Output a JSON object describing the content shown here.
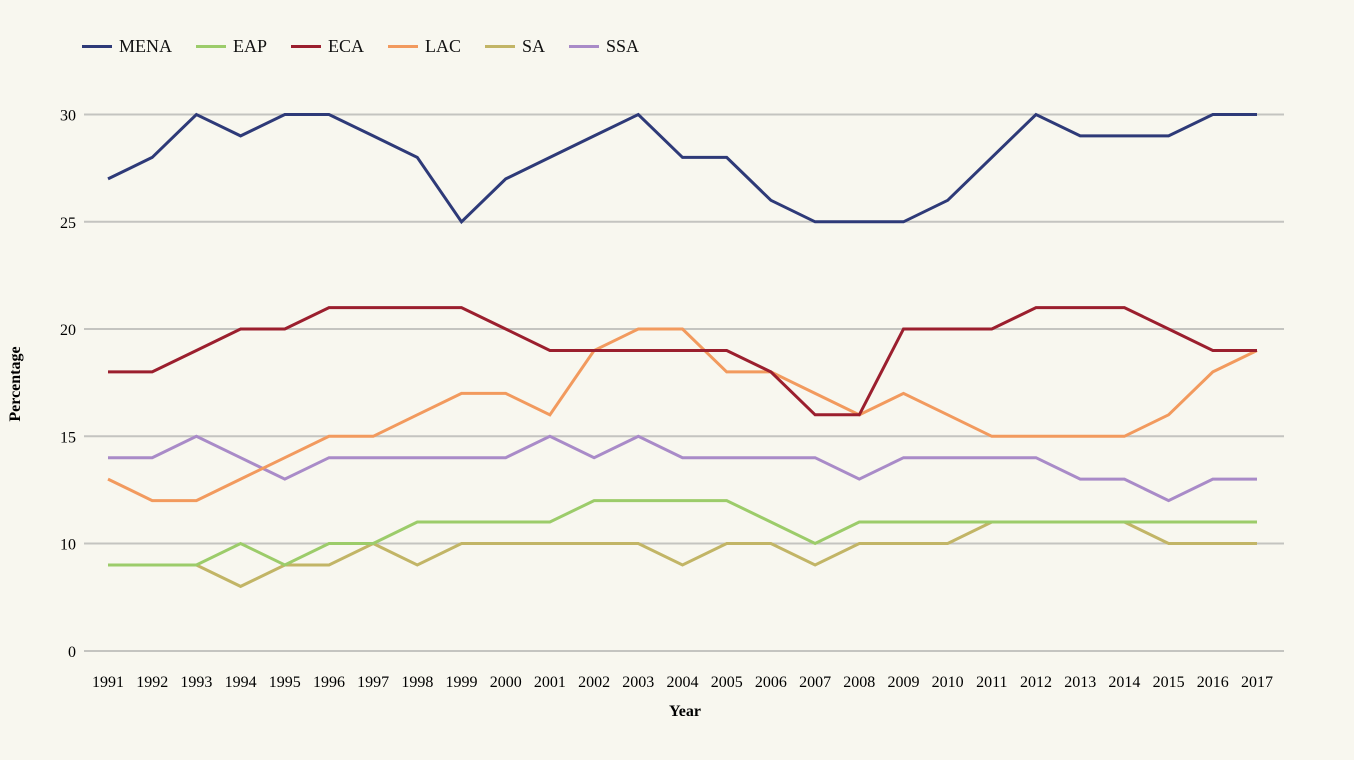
{
  "chart_data": {
    "type": "line",
    "title": "",
    "xlabel": "Year",
    "ylabel": "Percentage",
    "x": [
      "1991",
      "1992",
      "1993",
      "1994",
      "1995",
      "1996",
      "1997",
      "1998",
      "1999",
      "2000",
      "2001",
      "2002",
      "2003",
      "2004",
      "2005",
      "2006",
      "2007",
      "2008",
      "2009",
      "2010",
      "2011",
      "2012",
      "2013",
      "2014",
      "2015",
      "2016",
      "2017"
    ],
    "yticks": [
      0,
      10,
      15,
      20,
      25,
      30
    ],
    "ylim": [
      0,
      30
    ],
    "grid": true,
    "legend_position": "top-left",
    "series": [
      {
        "name": "MENA",
        "color": "#2e3a78",
        "values": [
          27,
          28,
          30,
          29,
          30,
          30,
          29,
          28,
          25,
          27,
          28,
          29,
          30,
          28,
          28,
          26,
          25,
          25,
          25,
          26,
          28,
          30,
          29,
          29,
          29,
          30,
          30
        ]
      },
      {
        "name": "EAP",
        "color": "#9ccc6a",
        "values": [
          9,
          9,
          9,
          10,
          9,
          10,
          10,
          11,
          11,
          11,
          11,
          12,
          12,
          12,
          12,
          11,
          10,
          11,
          11,
          11,
          11,
          11,
          11,
          11,
          11,
          11,
          11
        ]
      },
      {
        "name": "ECA",
        "color": "#9b1f2e",
        "values": [
          18,
          18,
          19,
          20,
          20,
          21,
          21,
          21,
          21,
          20,
          19,
          19,
          19,
          19,
          19,
          18,
          16,
          16,
          20,
          20,
          20,
          21,
          21,
          21,
          20,
          19,
          19
        ]
      },
      {
        "name": "LAC",
        "color": "#f29a5e",
        "values": [
          13,
          12,
          12,
          13,
          14,
          15,
          15,
          16,
          17,
          17,
          16,
          19,
          20,
          20,
          18,
          18,
          17,
          16,
          17,
          16,
          15,
          15,
          15,
          15,
          16,
          18,
          19
        ]
      },
      {
        "name": "SA",
        "color": "#c2b566",
        "values": [
          9,
          9,
          9,
          8,
          9,
          9,
          10,
          9,
          10,
          10,
          10,
          10,
          10,
          9,
          10,
          10,
          9,
          10,
          10,
          10,
          11,
          11,
          11,
          11,
          10,
          10,
          10
        ]
      },
      {
        "name": "SSA",
        "color": "#a98bc8",
        "values": [
          14,
          14,
          15,
          14,
          13,
          14,
          14,
          14,
          14,
          14,
          15,
          14,
          15,
          14,
          14,
          14,
          14,
          13,
          14,
          14,
          14,
          14,
          13,
          13,
          12,
          13,
          13
        ]
      }
    ]
  }
}
